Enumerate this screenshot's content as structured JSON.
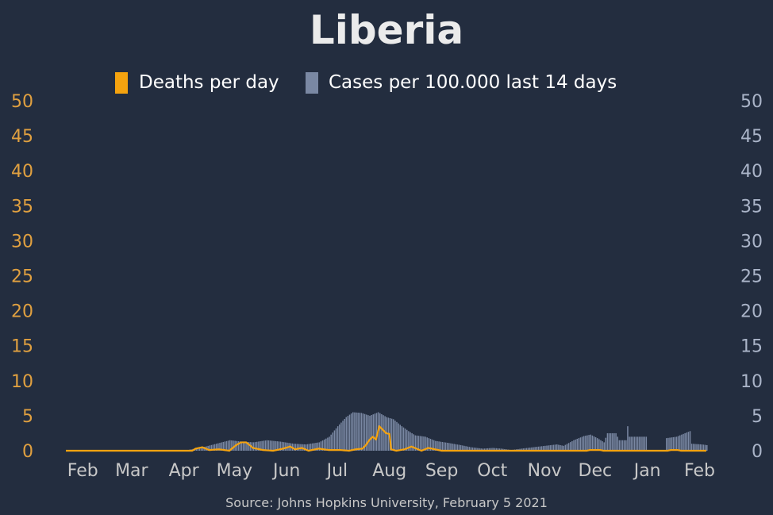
{
  "chart_data": {
    "type": "bar",
    "title": "Liberia",
    "source": "Source: Johns Hopkins University, February 5 2021",
    "legend": {
      "placement": "top-center",
      "items": [
        {
          "label": "Deaths per day",
          "color": "#f5a30f"
        },
        {
          "label": "Cases per 100.000 last 14 days",
          "color": "#7a88a3"
        }
      ]
    },
    "colors": {
      "background": "#232d3f",
      "title": "#ebebeb",
      "left_axis": "#e0a040",
      "right_axis": "#aab4c8",
      "month_labels": "#c8c8c8",
      "bars": "#7a88a3",
      "line": "#f5a30f",
      "source": "#c8c8c8"
    },
    "y_left": {
      "ticks": [
        "0",
        "5",
        "10",
        "15",
        "20",
        "25",
        "30",
        "35",
        "40",
        "45",
        "50"
      ],
      "ylim": [
        0,
        50
      ]
    },
    "y_right": {
      "ticks": [
        "0",
        "5",
        "10",
        "15",
        "20",
        "25",
        "30",
        "35",
        "40",
        "45",
        "50"
      ],
      "ylim": [
        0,
        50
      ]
    },
    "x_axis": {
      "start": "2020-01-22",
      "end": "2021-02-05",
      "months": [
        {
          "label": "Feb",
          "date": "2020-02-01"
        },
        {
          "label": "Mar",
          "date": "2020-03-01"
        },
        {
          "label": "Apr",
          "date": "2020-04-01"
        },
        {
          "label": "May",
          "date": "2020-05-01"
        },
        {
          "label": "Jun",
          "date": "2020-06-01"
        },
        {
          "label": "Jul",
          "date": "2020-07-01"
        },
        {
          "label": "Aug",
          "date": "2020-08-01"
        },
        {
          "label": "Sep",
          "date": "2020-09-01"
        },
        {
          "label": "Oct",
          "date": "2020-10-01"
        },
        {
          "label": "Nov",
          "date": "2020-11-01"
        },
        {
          "label": "Dec",
          "date": "2020-12-01"
        },
        {
          "label": "Jan",
          "date": "2021-01-01"
        },
        {
          "label": "Feb",
          "date": "2021-02-01"
        }
      ]
    },
    "cases_keypoints": [
      [
        "2020-01-22",
        0
      ],
      [
        "2020-04-01",
        0
      ],
      [
        "2020-04-05",
        0.2
      ],
      [
        "2020-04-12",
        0.5
      ],
      [
        "2020-04-20",
        1.0
      ],
      [
        "2020-04-28",
        1.5
      ],
      [
        "2020-05-05",
        1.3
      ],
      [
        "2020-05-12",
        1.2
      ],
      [
        "2020-05-20",
        1.5
      ],
      [
        "2020-05-28",
        1.3
      ],
      [
        "2020-06-05",
        1.0
      ],
      [
        "2020-06-12",
        0.9
      ],
      [
        "2020-06-20",
        1.2
      ],
      [
        "2020-06-26",
        2.0
      ],
      [
        "2020-07-01",
        3.5
      ],
      [
        "2020-07-06",
        4.8
      ],
      [
        "2020-07-10",
        5.5
      ],
      [
        "2020-07-15",
        5.4
      ],
      [
        "2020-07-20",
        5.0
      ],
      [
        "2020-07-25",
        5.5
      ],
      [
        "2020-07-30",
        4.8
      ],
      [
        "2020-08-03",
        4.5
      ],
      [
        "2020-08-08",
        3.5
      ],
      [
        "2020-08-12",
        2.8
      ],
      [
        "2020-08-16",
        2.2
      ],
      [
        "2020-08-22",
        2.0
      ],
      [
        "2020-08-28",
        1.4
      ],
      [
        "2020-09-05",
        1.1
      ],
      [
        "2020-09-12",
        0.8
      ],
      [
        "2020-09-18",
        0.5
      ],
      [
        "2020-09-25",
        0.3
      ],
      [
        "2020-10-01",
        0.4
      ],
      [
        "2020-10-06",
        0.3
      ],
      [
        "2020-10-12",
        0.1
      ],
      [
        "2020-10-18",
        0.3
      ],
      [
        "2020-10-25",
        0.5
      ],
      [
        "2020-11-01",
        0.7
      ],
      [
        "2020-11-08",
        0.9
      ],
      [
        "2020-11-12",
        0.7
      ],
      [
        "2020-11-18",
        1.5
      ],
      [
        "2020-11-24",
        2.1
      ],
      [
        "2020-11-28",
        2.3
      ],
      [
        "2020-12-02",
        1.8
      ],
      [
        "2020-12-06",
        1.2
      ],
      [
        "2020-12-08",
        2.5
      ],
      [
        "2020-12-13",
        2.5
      ],
      [
        "2020-12-15",
        1.5
      ],
      [
        "2020-12-19",
        1.5
      ],
      [
        "2020-12-20",
        3.5
      ],
      [
        "2020-12-21",
        2.0
      ],
      [
        "2020-12-28",
        2.0
      ],
      [
        "2020-12-31",
        2.0
      ],
      [
        "2021-01-01",
        0
      ],
      [
        "2021-01-11",
        0
      ],
      [
        "2021-01-12",
        1.8
      ],
      [
        "2021-01-18",
        2.0
      ],
      [
        "2021-01-24",
        2.6
      ],
      [
        "2021-01-26",
        2.8
      ],
      [
        "2021-01-27",
        1.0
      ],
      [
        "2021-02-02",
        0.9
      ],
      [
        "2021-02-05",
        0.8
      ]
    ],
    "deaths_keypoints": [
      [
        "2020-01-22",
        0
      ],
      [
        "2020-04-06",
        0
      ],
      [
        "2020-04-08",
        0.3
      ],
      [
        "2020-04-12",
        0.5
      ],
      [
        "2020-04-16",
        0.1
      ],
      [
        "2020-04-22",
        0.2
      ],
      [
        "2020-04-28",
        0
      ],
      [
        "2020-05-02",
        0.8
      ],
      [
        "2020-05-05",
        1.2
      ],
      [
        "2020-05-08",
        1.2
      ],
      [
        "2020-05-12",
        0.4
      ],
      [
        "2020-05-18",
        0.1
      ],
      [
        "2020-05-24",
        0
      ],
      [
        "2020-05-30",
        0.3
      ],
      [
        "2020-06-03",
        0.6
      ],
      [
        "2020-06-06",
        0.2
      ],
      [
        "2020-06-10",
        0.4
      ],
      [
        "2020-06-14",
        0
      ],
      [
        "2020-06-20",
        0.3
      ],
      [
        "2020-06-26",
        0.1
      ],
      [
        "2020-07-03",
        0.1
      ],
      [
        "2020-07-08",
        0
      ],
      [
        "2020-07-12",
        0.2
      ],
      [
        "2020-07-16",
        0.3
      ],
      [
        "2020-07-18",
        0.8
      ],
      [
        "2020-07-20",
        1.5
      ],
      [
        "2020-07-22",
        2.0
      ],
      [
        "2020-07-24",
        1.6
      ],
      [
        "2020-07-26",
        3.5
      ],
      [
        "2020-07-28",
        3.0
      ],
      [
        "2020-07-30",
        2.5
      ],
      [
        "2020-08-01",
        2.4
      ],
      [
        "2020-08-02",
        0.2
      ],
      [
        "2020-08-05",
        0
      ],
      [
        "2020-08-10",
        0.2
      ],
      [
        "2020-08-14",
        0.6
      ],
      [
        "2020-08-18",
        0.2
      ],
      [
        "2020-08-20",
        0
      ],
      [
        "2020-08-24",
        0.4
      ],
      [
        "2020-08-28",
        0.2
      ],
      [
        "2020-09-01",
        0
      ],
      [
        "2020-11-26",
        0
      ],
      [
        "2020-11-28",
        0.1
      ],
      [
        "2020-12-04",
        0.1
      ],
      [
        "2020-12-06",
        0
      ],
      [
        "2021-01-13",
        0
      ],
      [
        "2021-01-15",
        0.1
      ],
      [
        "2021-01-19",
        0.1
      ],
      [
        "2021-01-21",
        0
      ],
      [
        "2021-02-05",
        0
      ]
    ]
  }
}
